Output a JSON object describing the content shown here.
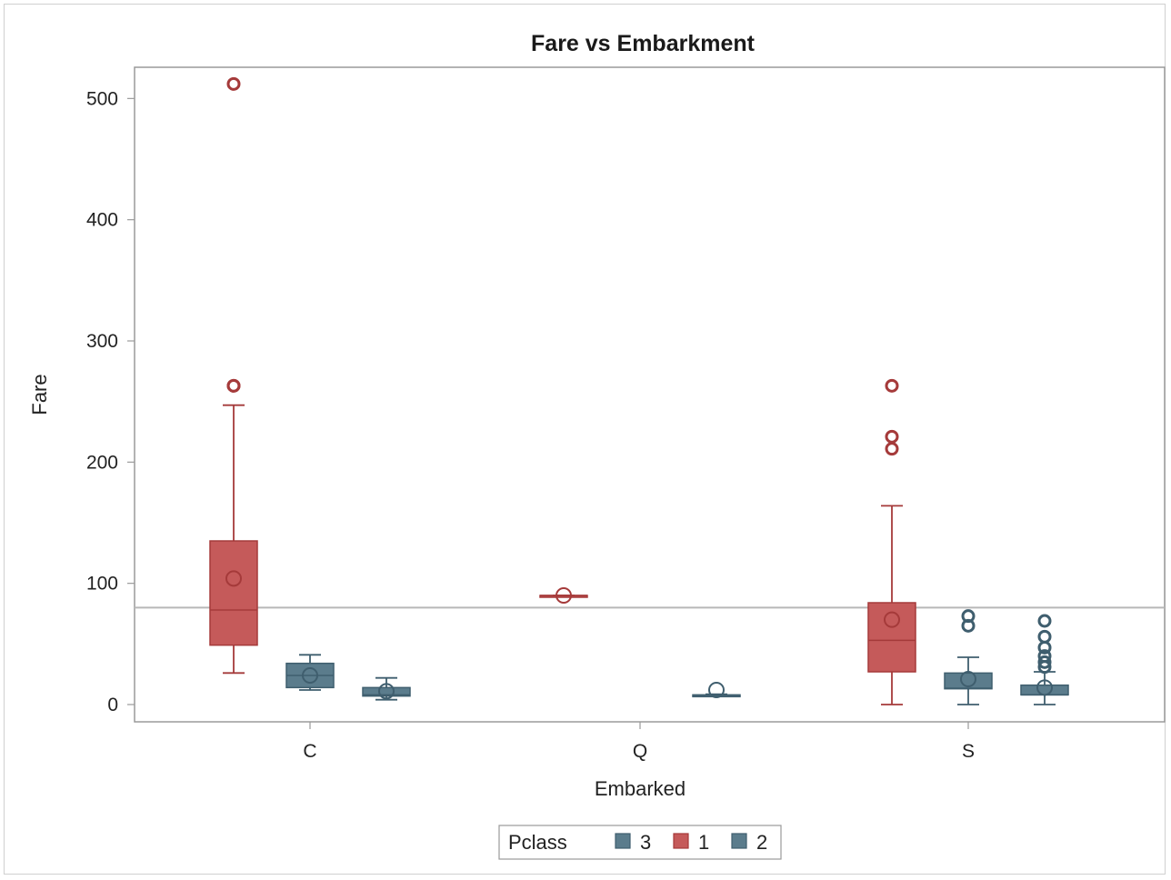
{
  "chart_data": {
    "type": "box",
    "title": "Fare vs Embarkment",
    "xlabel": "Embarked",
    "ylabel": "Fare",
    "categories": [
      "C",
      "Q",
      "S"
    ],
    "ylim": [
      -15,
      515
    ],
    "yticks": [
      0,
      100,
      200,
      300,
      400,
      500
    ],
    "reference_line_y": 80,
    "legend": {
      "title": "Pclass",
      "position": "bottom",
      "order": [
        "3",
        "1",
        "2"
      ]
    },
    "series": [
      {
        "name": "1",
        "color": "#c55a5a",
        "offset": -0.3,
        "boxes": [
          {
            "category": "C",
            "whisker_low": 26,
            "q1": 49,
            "median": 78,
            "q3": 135,
            "whisker_high": 247,
            "mean": 104,
            "outliers": [
              263,
              263,
              512
            ]
          },
          {
            "category": "Q",
            "whisker_low": 90,
            "q1": 90,
            "median": 90,
            "q3": 90,
            "whisker_high": 90,
            "mean": 90,
            "outliers": []
          },
          {
            "category": "S",
            "whisker_low": 0,
            "q1": 27,
            "median": 53,
            "q3": 84,
            "whisker_high": 164,
            "mean": 70,
            "outliers": [
              211,
              221,
              263
            ]
          }
        ]
      },
      {
        "name": "2",
        "color": "#5b7c8c",
        "offset": 0,
        "boxes": [
          {
            "category": "C",
            "whisker_low": 12,
            "q1": 14,
            "median": 24,
            "q3": 34,
            "whisker_high": 41,
            "mean": 24,
            "outliers": []
          },
          {
            "category": "S",
            "whisker_low": 0,
            "q1": 13,
            "median": 13.5,
            "q3": 26,
            "whisker_high": 39,
            "mean": 21,
            "outliers": [
              65,
              73
            ]
          }
        ]
      },
      {
        "name": "3",
        "color": "#5b7c8c",
        "offset": 0.3,
        "boxes": [
          {
            "category": "C",
            "whisker_low": 4,
            "q1": 7,
            "median": 8,
            "q3": 14,
            "whisker_high": 22,
            "mean": 11,
            "outliers": []
          },
          {
            "category": "Q",
            "whisker_low": 7,
            "q1": 7.5,
            "median": 7.75,
            "q3": 8,
            "whisker_high": 8.5,
            "mean": 12,
            "outliers": []
          },
          {
            "category": "S",
            "whisker_low": 0,
            "q1": 8,
            "median": 8,
            "q3": 16,
            "whisker_high": 27,
            "mean": 14,
            "outliers": [
              31,
              35,
              40,
              47,
              56,
              69
            ]
          }
        ]
      }
    ]
  }
}
